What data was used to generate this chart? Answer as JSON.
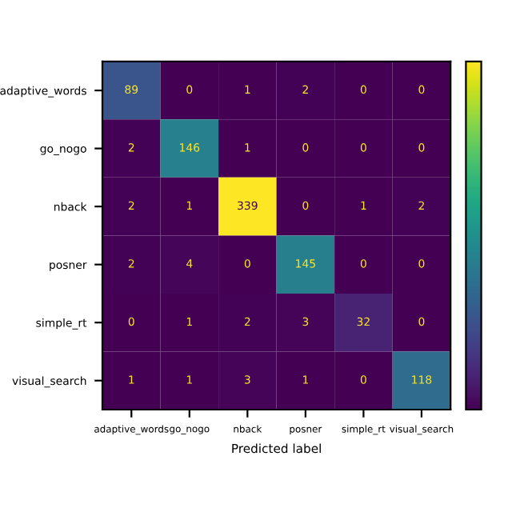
{
  "chart_data": {
    "type": "heatmap",
    "xlabel": "Predicted label",
    "categories": [
      "adaptive_words",
      "go_nogo",
      "nback",
      "posner",
      "simple_rt",
      "visual_search"
    ],
    "y_categories": [
      "adaptive_words",
      "go_nogo",
      "nback",
      "posner",
      "simple_rt",
      "visual_search"
    ],
    "cells": [
      [
        89,
        0,
        1,
        2,
        0,
        0
      ],
      [
        2,
        146,
        1,
        0,
        0,
        0
      ],
      [
        2,
        1,
        339,
        0,
        1,
        2
      ],
      [
        2,
        4,
        0,
        145,
        0,
        0
      ],
      [
        0,
        1,
        2,
        3,
        32,
        0
      ],
      [
        1,
        1,
        3,
        1,
        0,
        118
      ]
    ],
    "data_labels": true
  }
}
